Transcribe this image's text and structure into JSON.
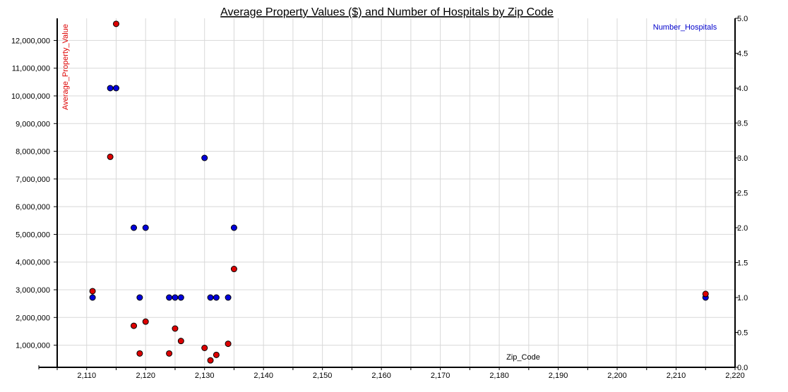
{
  "chart_data": {
    "type": "scatter",
    "title": "Average Property Values ($) and Number of Hospitals by Zip Code",
    "xlabel": "Zip_Code",
    "xlim": [
      2105,
      2220
    ],
    "x_ticks": [
      2110,
      2120,
      2130,
      2140,
      2150,
      2160,
      2170,
      2180,
      2190,
      2200,
      2210,
      2220
    ],
    "x_tick_labels": [
      "2,110",
      "2,120",
      "2,130",
      "2,140",
      "2,150",
      "2,160",
      "2,170",
      "2,180",
      "2,190",
      "2,200",
      "2,210",
      "2,220"
    ],
    "y_left": {
      "label": "Average_Property_Value",
      "lim": [
        200000,
        12800000
      ],
      "ticks": [
        1000000,
        2000000,
        3000000,
        4000000,
        5000000,
        6000000,
        7000000,
        8000000,
        9000000,
        10000000,
        11000000,
        12000000
      ],
      "tick_labels": [
        "1,000,000",
        "2,000,000",
        "3,000,000",
        "4,000,000",
        "5,000,000",
        "6,000,000",
        "7,000,000",
        "8,000,000",
        "9,000,000",
        "10,000,000",
        "11,000,000",
        "12,000,000"
      ]
    },
    "y_right": {
      "label": "Number_Hospitals",
      "lim": [
        0,
        5
      ],
      "ticks": [
        0,
        0.5,
        1,
        1.5,
        2,
        2.5,
        3,
        3.5,
        4,
        4.5,
        5
      ],
      "tick_labels": [
        "0.0",
        "0.5",
        "1.0",
        "1.5",
        "2.0",
        "2.5",
        "3.0",
        "3.5",
        "4.0",
        "4.5",
        "5.0"
      ]
    },
    "grid": true,
    "series": [
      {
        "name": "Average_Property_Value",
        "axis": "left",
        "color": "#dd0000",
        "points": [
          {
            "x": 2111,
            "y": 2950000
          },
          {
            "x": 2114,
            "y": 7800000
          },
          {
            "x": 2115,
            "y": 12600000
          },
          {
            "x": 2118,
            "y": 1700000
          },
          {
            "x": 2119,
            "y": 700000
          },
          {
            "x": 2120,
            "y": 1850000
          },
          {
            "x": 2124,
            "y": 700000
          },
          {
            "x": 2125,
            "y": 1600000
          },
          {
            "x": 2126,
            "y": 1150000
          },
          {
            "x": 2130,
            "y": 900000
          },
          {
            "x": 2131,
            "y": 450000
          },
          {
            "x": 2132,
            "y": 650000
          },
          {
            "x": 2134,
            "y": 1050000
          },
          {
            "x": 2135,
            "y": 3750000
          },
          {
            "x": 2215,
            "y": 2850000
          }
        ]
      },
      {
        "name": "Number_Hospitals",
        "axis": "right",
        "color": "#0000dd",
        "points": [
          {
            "x": 2111,
            "y": 1
          },
          {
            "x": 2114,
            "y": 4
          },
          {
            "x": 2115,
            "y": 4
          },
          {
            "x": 2118,
            "y": 2
          },
          {
            "x": 2119,
            "y": 1
          },
          {
            "x": 2120,
            "y": 2
          },
          {
            "x": 2124,
            "y": 1
          },
          {
            "x": 2125,
            "y": 1
          },
          {
            "x": 2126,
            "y": 1
          },
          {
            "x": 2130,
            "y": 3
          },
          {
            "x": 2131,
            "y": 1
          },
          {
            "x": 2132,
            "y": 1
          },
          {
            "x": 2134,
            "y": 1
          },
          {
            "x": 2135,
            "y": 2
          },
          {
            "x": 2215,
            "y": 1
          }
        ]
      }
    ]
  }
}
